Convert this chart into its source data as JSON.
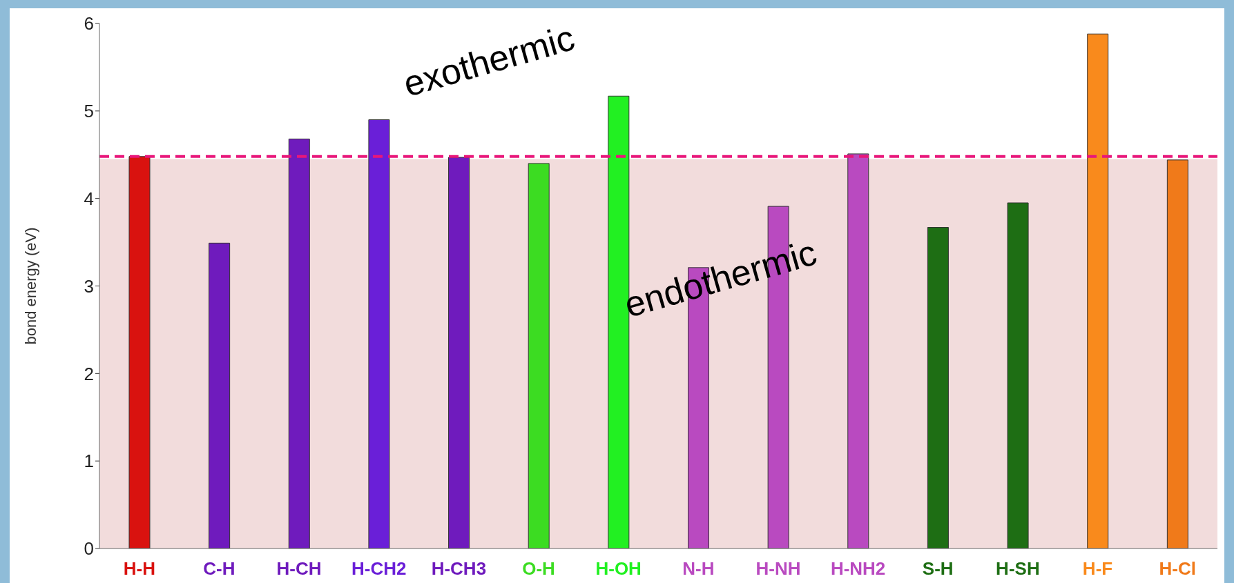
{
  "chart_data": {
    "type": "bar",
    "ylabel": "bond energy (eV)",
    "categories": [
      "H-H",
      "C-H",
      "H-CH",
      "H-CH2",
      "H-CH3",
      "O-H",
      "H-OH",
      "N-H",
      "H-NH",
      "H-NH2",
      "S-H",
      "H-SH",
      "H-F",
      "H-Cl"
    ],
    "values": [
      4.48,
      3.49,
      4.68,
      4.9,
      4.47,
      4.4,
      5.17,
      3.21,
      3.91,
      4.51,
      3.67,
      3.95,
      5.88,
      4.44
    ],
    "colors": [
      "#d9120f",
      "#6f1bbd",
      "#6f1bbd",
      "#6a1fd8",
      "#6f1bbd",
      "#3cdc22",
      "#22f022",
      "#b94ac0",
      "#b94ac0",
      "#b94ac0",
      "#1e6e14",
      "#1e6e14",
      "#f98a1c",
      "#f07a1a"
    ],
    "ylim": [
      0,
      6
    ],
    "yticks": [
      0,
      1,
      2,
      3,
      4,
      5,
      6
    ],
    "ref_lines": [
      {
        "axis": "y",
        "value": 4.48,
        "color": "#e8177a",
        "line_style": "dashed"
      }
    ],
    "bands": [
      {
        "axis": "y",
        "from": 0,
        "to": 4.45,
        "color": "#f2dcdc"
      }
    ],
    "annotations": [
      "exothermic",
      "endothermic"
    ],
    "grid": false,
    "legend": false
  }
}
